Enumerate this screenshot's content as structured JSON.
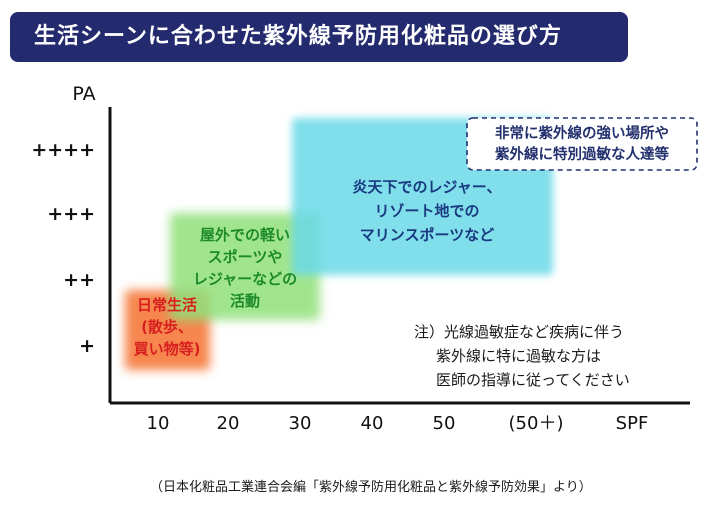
{
  "header": {
    "title": "生活シーンに合わせた紫外線予防用化粧品の選び方"
  },
  "note": {
    "lines": [
      "注）光線過敏症など疾病に伴う",
      "紫外線に特に過敏な方は",
      "医師の指導に従ってください"
    ]
  },
  "source": "（日本化粧品工業連合会編「紫外線予防用化粧品と紫外線予防効果」より）",
  "colors": {
    "header_bg": "#232a6e",
    "zone_daily": "#f4722f",
    "zone_outdoor": "#8fe07a",
    "zone_resort": "#6ad9e8",
    "zone_sensitive": "#23306e"
  },
  "chart_data": {
    "type": "area",
    "xlabel": "SPF",
    "ylabel": "PA",
    "x_ticks": [
      "10",
      "20",
      "30",
      "40",
      "50",
      "(50＋)"
    ],
    "y_ticks": [
      "+",
      "++",
      "+++",
      "++++"
    ],
    "zones": [
      {
        "label": [
          "日常生活",
          "(散歩、",
          "買い物等)"
        ],
        "spf_range": [
          10,
          20
        ],
        "pa_range": [
          1,
          1.5
        ],
        "color": "#f4722f",
        "text_color": "#d81f1f"
      },
      {
        "label": [
          "屋外での軽い",
          "スポーツや",
          "レジャーなどの",
          "活動"
        ],
        "spf_range": [
          20,
          30
        ],
        "pa_range": [
          1.5,
          3
        ],
        "color": "#8fe07a",
        "text_color": "#1d8a2a"
      },
      {
        "label": [
          "炎天下でのレジャー、",
          "リゾート地での",
          "マリンスポーツなど"
        ],
        "spf_range": [
          30,
          50
        ],
        "pa_range": [
          2,
          4
        ],
        "color": "#6ad9e8",
        "text_color": "#1a3a80"
      },
      {
        "label": [
          "非常に紫外線の強い場所や",
          "紫外線に特別過敏な人達等"
        ],
        "spf_range": [
          50,
          60
        ],
        "pa_range": [
          4,
          4.2
        ],
        "color": "#23306e",
        "text_color": "#23306e",
        "dashed": true
      }
    ]
  }
}
